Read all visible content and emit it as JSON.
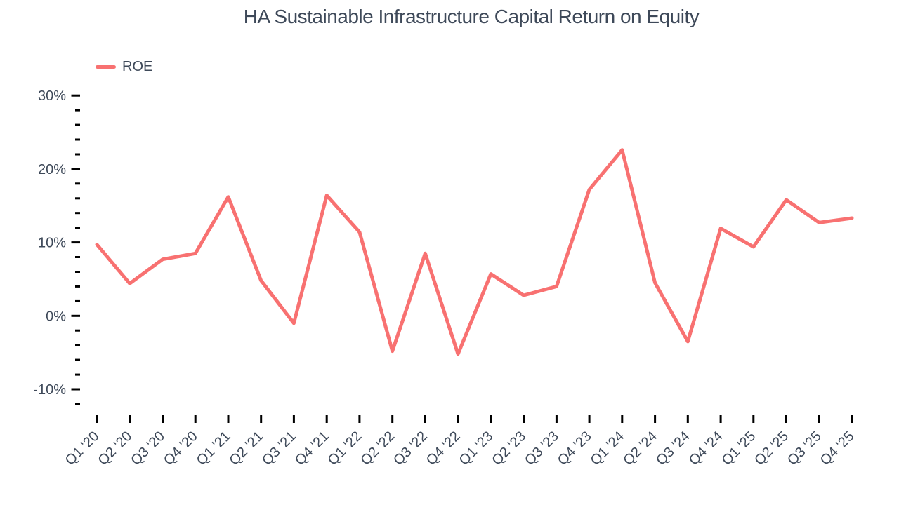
{
  "title": "HA Sustainable Infrastructure Capital Return on Equity",
  "chart_data": {
    "type": "line",
    "title": "HA Sustainable Infrastructure Capital Return on Equity",
    "categories": [
      "Q1 '20",
      "Q2 '20",
      "Q3 '20",
      "Q4 '20",
      "Q1 '21",
      "Q2 '21",
      "Q3 '21",
      "Q4 '21",
      "Q1 '22",
      "Q2 '22",
      "Q3 '22",
      "Q4 '22",
      "Q1 '23",
      "Q2 '23",
      "Q3 '23",
      "Q4 '23",
      "Q1 '24",
      "Q2 '24",
      "Q3 '24",
      "Q4 '24",
      "Q1 '25",
      "Q2 '25",
      "Q3 '25",
      "Q4 '25"
    ],
    "series": [
      {
        "name": "ROE",
        "values": [
          9.7,
          4.4,
          7.7,
          8.5,
          16.2,
          4.8,
          -1.0,
          16.4,
          11.4,
          -4.8,
          8.5,
          -5.2,
          5.7,
          2.8,
          4.0,
          17.2,
          22.6,
          4.5,
          -3.5,
          11.9,
          9.4,
          15.8,
          12.7,
          13.3
        ]
      }
    ],
    "xlabel": "",
    "ylabel": "",
    "ylim": [
      -12,
      30
    ],
    "y_major_ticks": [
      30,
      20,
      10,
      0,
      -10
    ],
    "y_minor_step": 2,
    "y_tick_suffix": "%",
    "grid": false,
    "legend_position": "top-left",
    "colors": {
      "line": "#F87171",
      "text": "#3E4959",
      "tick": "#000000",
      "background": "#FFFFFF"
    }
  }
}
